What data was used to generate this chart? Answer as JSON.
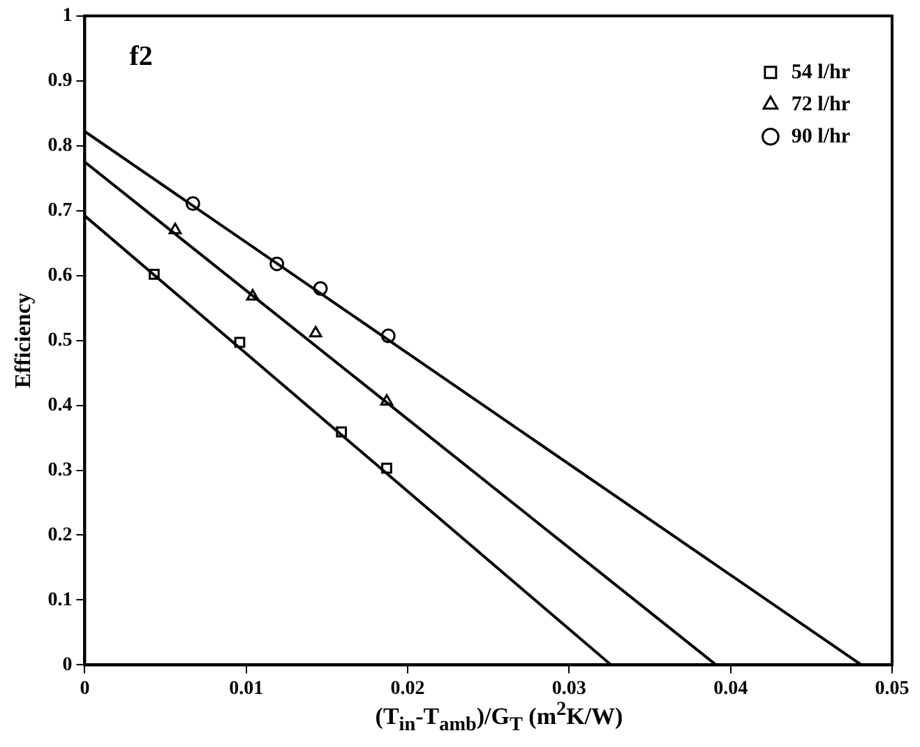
{
  "chart_data": {
    "type": "scatter",
    "xlabel": "(T$_{in}$-T$_{amb}$)/G$_{T}$ (m$^{2}$K/W)",
    "ylabel": "Efficiency",
    "annotations": [
      "f2"
    ],
    "xlim": [
      0,
      0.05
    ],
    "xticks": [
      0,
      0.01,
      0.02,
      0.03,
      0.04,
      0.05
    ],
    "ylim": [
      0,
      1
    ],
    "yticks": [
      0,
      0.1,
      0.2,
      0.3,
      0.4,
      0.5,
      0.6,
      0.7,
      0.8,
      0.9,
      1
    ],
    "grid": false,
    "legend": "top right",
    "series": [
      {
        "name": "54 l/hr",
        "type": "scatter",
        "marker": "square",
        "color": "#000000",
        "x": [
          0.0043,
          0.0096,
          0.0159,
          0.0187
        ],
        "values": [
          0.602,
          0.497,
          0.359,
          0.303
        ]
      },
      {
        "name": "72 l/hr",
        "type": "scatter",
        "marker": "triangle",
        "color": "#000000",
        "x": [
          0.0056,
          0.0104,
          0.0143,
          0.0187
        ],
        "values": [
          0.67,
          0.568,
          0.511,
          0.406
        ]
      },
      {
        "name": "90 l/hr",
        "type": "scatter",
        "marker": "circle",
        "color": "#000000",
        "x": [
          0.0067,
          0.0119,
          0.0146,
          0.0188
        ],
        "values": [
          0.711,
          0.618,
          0.58,
          0.507
        ]
      },
      {
        "type": "line",
        "marker": "none",
        "color": "#000000",
        "x": [
          0,
          0.0326
        ],
        "values": [
          0.692,
          0
        ]
      },
      {
        "type": "line",
        "marker": "none",
        "color": "#000000",
        "x": [
          0,
          0.0391
        ],
        "values": [
          0.775,
          0
        ]
      },
      {
        "type": "line",
        "marker": "none",
        "color": "#000000",
        "x": [
          0,
          0.0481
        ],
        "values": [
          0.822,
          0
        ]
      }
    ]
  }
}
